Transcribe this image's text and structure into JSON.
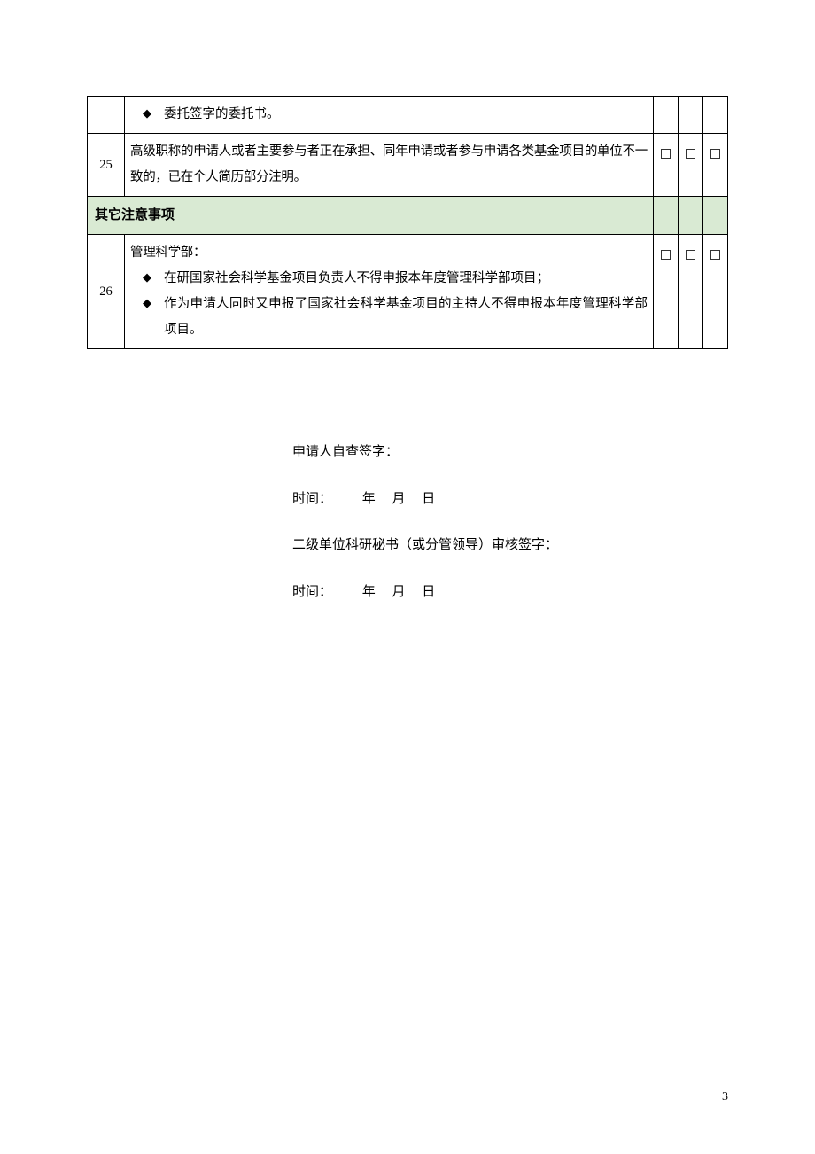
{
  "table": {
    "rows": [
      {
        "num": "",
        "type": "bullet-only",
        "bullets": [
          "委托签字的委托书。"
        ],
        "checks": [
          "",
          "",
          ""
        ]
      },
      {
        "num": "25",
        "type": "plain",
        "text": "高级职称的申请人或者主要参与者正在承担、同年申请或者参与申请各类基金项目的单位不一致的，已在个人简历部分注明。",
        "checks": [
          "□",
          "□",
          "□"
        ]
      },
      {
        "type": "section",
        "label": "其它注意事项",
        "checks": [
          "",
          "",
          ""
        ]
      },
      {
        "num": "26",
        "type": "lead-bullets",
        "lead": "管理科学部：",
        "bullets": [
          "在研国家社会科学基金项目负责人不得申报本年度管理科学部项目；",
          "作为申请人同时又申报了国家社会科学基金项目的主持人不得申报本年度管理科学部项目。"
        ],
        "checks": [
          "□",
          "□",
          "□"
        ]
      }
    ]
  },
  "signature": {
    "line1": "申请人自查签字：",
    "line2": "时间：         年     月     日",
    "line3": "二级单位科研秘书（或分管领导）审核签字：",
    "line4": "时间：         年     月     日"
  },
  "pageNumber": "3",
  "colors": {
    "section_bg": "#d9ead3",
    "border": "#000000",
    "text": "#000000"
  }
}
